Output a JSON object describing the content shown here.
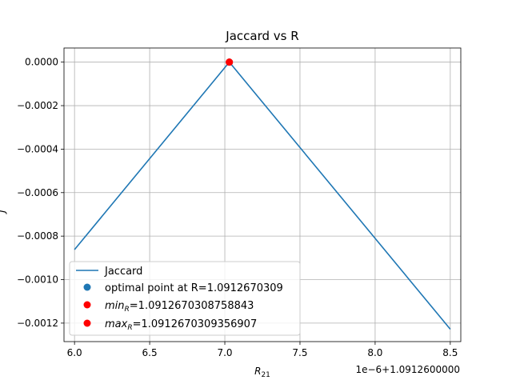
{
  "chart_data": {
    "type": "line",
    "title": "Jaccard vs R",
    "xlabel_base": "R",
    "xlabel_sub": "21",
    "ylabel": "J",
    "x_offset_label": "1e−6+1.0912600000",
    "xlim": [
      5.93,
      8.57
    ],
    "ylim": [
      -0.001285,
      6.5e-05
    ],
    "x_ticks": [
      {
        "value": 6.0,
        "label": "6.0"
      },
      {
        "value": 6.5,
        "label": "6.5"
      },
      {
        "value": 7.0,
        "label": "7.0"
      },
      {
        "value": 7.5,
        "label": "7.5"
      },
      {
        "value": 8.0,
        "label": "8.0"
      },
      {
        "value": 8.5,
        "label": "8.5"
      }
    ],
    "y_ticks": [
      {
        "value": 0.0,
        "label": "0.0000"
      },
      {
        "value": -0.0002,
        "label": "−0.0002"
      },
      {
        "value": -0.0004,
        "label": "−0.0004"
      },
      {
        "value": -0.0006,
        "label": "−0.0006"
      },
      {
        "value": -0.0008,
        "label": "−0.0008"
      },
      {
        "value": -0.001,
        "label": "−0.0010"
      },
      {
        "value": -0.0012,
        "label": "−0.0012"
      }
    ],
    "grid": true,
    "series": [
      {
        "name": "Jaccard",
        "kind": "line",
        "color": "#1f77b4",
        "x": [
          6.0,
          7.03,
          8.5
        ],
        "y": [
          -0.000862,
          0.0,
          -0.001228
        ]
      },
      {
        "name": "optimal point at R=1.0912670309",
        "kind": "point",
        "color": "#1f77b4",
        "x": [
          7.03
        ],
        "y": [
          0.0
        ]
      },
      {
        "name_base": "min",
        "name_sub": "R",
        "name_rest": "=1.0912670308758843",
        "kind": "point",
        "color": "#ff0000",
        "x": [
          7.03
        ],
        "y": [
          0.0
        ]
      },
      {
        "name_base": "max",
        "name_sub": "R",
        "name_rest": "=1.0912670309356907",
        "kind": "point",
        "color": "#ff0000",
        "x": [
          7.03
        ],
        "y": [
          0.0
        ]
      }
    ],
    "legend_position": "lower-left"
  }
}
